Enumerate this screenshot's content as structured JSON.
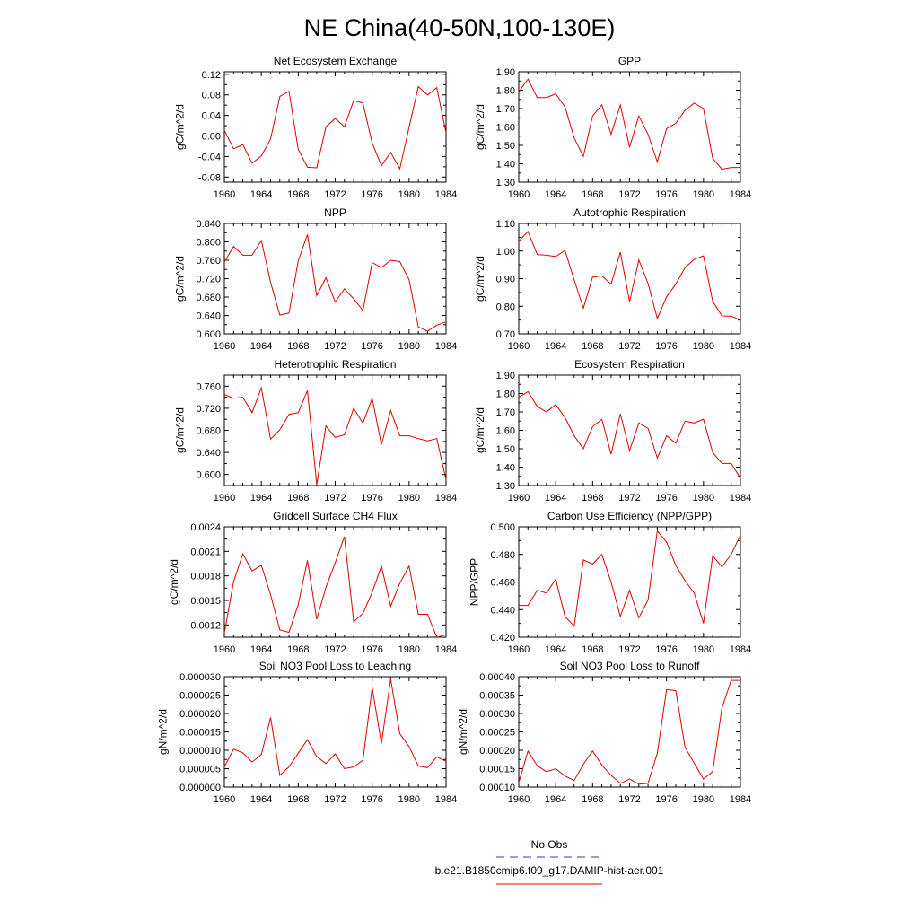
{
  "page": {
    "title": "NE China(40-50N,100-130E)"
  },
  "legend": {
    "entries": [
      {
        "label": "No Obs",
        "color": "#3333cc",
        "style": "dashed"
      },
      {
        "label": "b.e21.B1850cmip6.f09_g17.DAMIP-hist-aer.001",
        "color": "#e00000",
        "style": "solid"
      }
    ]
  },
  "chart_data": [
    {
      "type": "line",
      "title": "Net Ecosystem Exchange",
      "ylabel": "gC/m^2/d",
      "xlim": [
        1960,
        1984
      ],
      "ylim": [
        -0.09,
        0.125
      ],
      "xticks": [
        1960,
        1964,
        1968,
        1972,
        1976,
        1980,
        1984
      ],
      "yticks": [
        -0.08,
        -0.04,
        0.0,
        0.04,
        0.08,
        0.12
      ],
      "ytick_labels": [
        "-0.08",
        "-0.04",
        "0.00",
        "0.04",
        "0.08",
        "0.12"
      ],
      "series": [
        {
          "color": "#e00000",
          "x": [
            1960,
            1961,
            1962,
            1963,
            1964,
            1965,
            1966,
            1967,
            1968,
            1969,
            1970,
            1971,
            1972,
            1973,
            1974,
            1975,
            1976,
            1977,
            1978,
            1979,
            1980,
            1981,
            1982,
            1983,
            1984
          ],
          "y": [
            0.011,
            -0.025,
            -0.017,
            -0.053,
            -0.039,
            -0.006,
            0.077,
            0.087,
            -0.026,
            -0.061,
            -0.062,
            0.018,
            0.034,
            0.018,
            0.069,
            0.064,
            -0.014,
            -0.058,
            -0.032,
            -0.064,
            0.017,
            0.096,
            0.08,
            0.094,
            0.006
          ]
        }
      ]
    },
    {
      "type": "line",
      "title": "GPP",
      "ylabel": "gC/m^2/d",
      "xlim": [
        1960,
        1984
      ],
      "ylim": [
        1.3,
        1.9
      ],
      "xticks": [
        1960,
        1964,
        1968,
        1972,
        1976,
        1980,
        1984
      ],
      "yticks": [
        1.3,
        1.4,
        1.5,
        1.6,
        1.7,
        1.8,
        1.9
      ],
      "ytick_labels": [
        "1.30",
        "1.40",
        "1.50",
        "1.60",
        "1.70",
        "1.80",
        "1.90"
      ],
      "series": [
        {
          "color": "#e00000",
          "x": [
            1960,
            1961,
            1962,
            1963,
            1964,
            1965,
            1966,
            1967,
            1968,
            1969,
            1970,
            1971,
            1972,
            1973,
            1974,
            1975,
            1976,
            1977,
            1978,
            1979,
            1980,
            1981,
            1982,
            1983,
            1984
          ],
          "y": [
            1.79,
            1.86,
            1.76,
            1.76,
            1.78,
            1.71,
            1.54,
            1.44,
            1.66,
            1.72,
            1.56,
            1.72,
            1.49,
            1.66,
            1.56,
            1.41,
            1.59,
            1.62,
            1.69,
            1.73,
            1.7,
            1.43,
            1.37,
            1.38,
            1.38
          ]
        }
      ]
    },
    {
      "type": "line",
      "title": "NPP",
      "ylabel": "gC/m^2/d",
      "xlim": [
        1960,
        1984
      ],
      "ylim": [
        0.6,
        0.84
      ],
      "xticks": [
        1960,
        1964,
        1968,
        1972,
        1976,
        1980,
        1984
      ],
      "yticks": [
        0.6,
        0.64,
        0.68,
        0.72,
        0.76,
        0.8,
        0.84
      ],
      "ytick_labels": [
        "0.600",
        "0.640",
        "0.680",
        "0.720",
        "0.760",
        "0.800",
        "0.840"
      ],
      "series": [
        {
          "color": "#e00000",
          "x": [
            1960,
            1961,
            1962,
            1963,
            1964,
            1965,
            1966,
            1967,
            1968,
            1969,
            1970,
            1971,
            1972,
            1973,
            1974,
            1975,
            1976,
            1977,
            1978,
            1979,
            1980,
            1981,
            1982,
            1983,
            1984
          ],
          "y": [
            0.756,
            0.79,
            0.771,
            0.771,
            0.803,
            0.712,
            0.641,
            0.645,
            0.759,
            0.816,
            0.683,
            0.722,
            0.669,
            0.698,
            0.676,
            0.651,
            0.755,
            0.744,
            0.76,
            0.757,
            0.718,
            0.615,
            0.606,
            0.619,
            0.626
          ]
        }
      ]
    },
    {
      "type": "line",
      "title": "Autotrophic Respiration",
      "ylabel": "gC/m^2/d",
      "xlim": [
        1960,
        1984
      ],
      "ylim": [
        0.7,
        1.1
      ],
      "xticks": [
        1960,
        1964,
        1968,
        1972,
        1976,
        1980,
        1984
      ],
      "yticks": [
        0.7,
        0.8,
        0.9,
        1.0,
        1.1
      ],
      "ytick_labels": [
        "0.70",
        "0.80",
        "0.90",
        "1.00",
        "1.10"
      ],
      "series": [
        {
          "color": "#e00000",
          "x": [
            1960,
            1961,
            1962,
            1963,
            1964,
            1965,
            1966,
            1967,
            1968,
            1969,
            1970,
            1971,
            1972,
            1973,
            1974,
            1975,
            1976,
            1977,
            1978,
            1979,
            1980,
            1981,
            1982,
            1983,
            1984
          ],
          "y": [
            1.035,
            1.071,
            0.987,
            0.985,
            0.98,
            1.002,
            0.895,
            0.793,
            0.906,
            0.91,
            0.88,
            0.996,
            0.816,
            0.968,
            0.882,
            0.756,
            0.834,
            0.88,
            0.94,
            0.97,
            0.983,
            0.818,
            0.765,
            0.764,
            0.75
          ]
        }
      ]
    },
    {
      "type": "line",
      "title": "Heterotrophic Respiration",
      "ylabel": "gC/m^2/d",
      "xlim": [
        1960,
        1984
      ],
      "ylim": [
        0.58,
        0.78
      ],
      "xticks": [
        1960,
        1964,
        1968,
        1972,
        1976,
        1980,
        1984
      ],
      "yticks": [
        0.6,
        0.64,
        0.68,
        0.72,
        0.76
      ],
      "ytick_labels": [
        "0.600",
        "0.640",
        "0.680",
        "0.720",
        "0.760"
      ],
      "series": [
        {
          "color": "#e00000",
          "x": [
            1960,
            1961,
            1962,
            1963,
            1964,
            1965,
            1966,
            1967,
            1968,
            1969,
            1970,
            1971,
            1972,
            1973,
            1974,
            1975,
            1976,
            1977,
            1978,
            1979,
            1980,
            1981,
            1982,
            1983,
            1984
          ],
          "y": [
            0.745,
            0.738,
            0.74,
            0.712,
            0.757,
            0.664,
            0.681,
            0.709,
            0.712,
            0.752,
            0.582,
            0.688,
            0.667,
            0.672,
            0.72,
            0.693,
            0.738,
            0.654,
            0.716,
            0.67,
            0.67,
            0.665,
            0.661,
            0.665,
            0.59
          ]
        }
      ]
    },
    {
      "type": "line",
      "title": "Ecosystem Respiration",
      "ylabel": "gC/m^2/d",
      "xlim": [
        1960,
        1984
      ],
      "ylim": [
        1.3,
        1.9
      ],
      "xticks": [
        1960,
        1964,
        1968,
        1972,
        1976,
        1980,
        1984
      ],
      "yticks": [
        1.3,
        1.4,
        1.5,
        1.6,
        1.7,
        1.8,
        1.9
      ],
      "ytick_labels": [
        "1.30",
        "1.40",
        "1.50",
        "1.60",
        "1.70",
        "1.80",
        "1.90"
      ],
      "series": [
        {
          "color": "#e00000",
          "x": [
            1960,
            1961,
            1962,
            1963,
            1964,
            1965,
            1966,
            1967,
            1968,
            1969,
            1970,
            1971,
            1972,
            1973,
            1974,
            1975,
            1976,
            1977,
            1978,
            1979,
            1980,
            1981,
            1982,
            1983,
            1984
          ],
          "y": [
            1.78,
            1.81,
            1.73,
            1.7,
            1.74,
            1.67,
            1.57,
            1.5,
            1.62,
            1.66,
            1.47,
            1.69,
            1.49,
            1.64,
            1.61,
            1.45,
            1.57,
            1.53,
            1.65,
            1.64,
            1.66,
            1.48,
            1.42,
            1.42,
            1.34
          ]
        }
      ]
    },
    {
      "type": "line",
      "title": "Gridcell Surface CH4 Flux",
      "ylabel": "gC/m^2/d",
      "xlim": [
        1960,
        1984
      ],
      "ylim": [
        0.00105,
        0.0024
      ],
      "xticks": [
        1960,
        1964,
        1968,
        1972,
        1976,
        1980,
        1984
      ],
      "yticks": [
        0.0012,
        0.0015,
        0.0018,
        0.0021,
        0.0024
      ],
      "ytick_labels": [
        "0.0012",
        "0.0015",
        "0.0018",
        "0.0021",
        "0.0024"
      ],
      "series": [
        {
          "color": "#e00000",
          "x": [
            1960,
            1961,
            1962,
            1963,
            1964,
            1965,
            1966,
            1967,
            1968,
            1969,
            1970,
            1971,
            1972,
            1973,
            1974,
            1975,
            1976,
            1977,
            1978,
            1979,
            1980,
            1981,
            1982,
            1983,
            1984
          ],
          "y": [
            0.0011,
            0.00173,
            0.00207,
            0.00186,
            0.00193,
            0.00157,
            0.00114,
            0.00111,
            0.00145,
            0.00199,
            0.00127,
            0.00166,
            0.00196,
            0.00228,
            0.00124,
            0.00134,
            0.0016,
            0.00192,
            0.00143,
            0.00171,
            0.00192,
            0.00133,
            0.00133,
            0.00105,
            0.00108
          ]
        }
      ]
    },
    {
      "type": "line",
      "title": "Carbon Use Efficiency (NPP/GPP)",
      "ylabel": "NPP/GPP",
      "xlim": [
        1960,
        1984
      ],
      "ylim": [
        0.42,
        0.5
      ],
      "xticks": [
        1960,
        1964,
        1968,
        1972,
        1976,
        1980,
        1984
      ],
      "yticks": [
        0.42,
        0.44,
        0.46,
        0.48,
        0.5
      ],
      "ytick_labels": [
        "0.420",
        "0.440",
        "0.460",
        "0.480",
        "0.500"
      ],
      "series": [
        {
          "color": "#e00000",
          "x": [
            1960,
            1961,
            1962,
            1963,
            1964,
            1965,
            1966,
            1967,
            1968,
            1969,
            1970,
            1971,
            1972,
            1973,
            1974,
            1975,
            1976,
            1977,
            1978,
            1979,
            1980,
            1981,
            1982,
            1983,
            1984
          ],
          "y": [
            0.443,
            0.443,
            0.454,
            0.452,
            0.462,
            0.435,
            0.428,
            0.476,
            0.473,
            0.48,
            0.46,
            0.435,
            0.454,
            0.434,
            0.447,
            0.497,
            0.489,
            0.472,
            0.461,
            0.452,
            0.43,
            0.479,
            0.471,
            0.48,
            0.494
          ]
        }
      ]
    },
    {
      "type": "line",
      "title": "Soil NO3 Pool Loss to Leaching",
      "ylabel": "gN/m^2/d",
      "xlim": [
        1960,
        1984
      ],
      "ylim": [
        0.0,
        3e-05
      ],
      "xticks": [
        1960,
        1964,
        1968,
        1972,
        1976,
        1980,
        1984
      ],
      "yticks": [
        0.0,
        5e-06,
        1e-05,
        1.5e-05,
        2e-05,
        2.5e-05,
        3e-05
      ],
      "ytick_labels": [
        "0.000000",
        "0.000005",
        "0.000010",
        "0.000015",
        "0.000020",
        "0.000025",
        "0.000030"
      ],
      "series": [
        {
          "color": "#e00000",
          "x": [
            1960,
            1961,
            1962,
            1963,
            1964,
            1965,
            1966,
            1967,
            1968,
            1969,
            1970,
            1971,
            1972,
            1973,
            1974,
            1975,
            1976,
            1977,
            1978,
            1979,
            1980,
            1981,
            1982,
            1983,
            1984
          ],
          "y": [
            5.5e-06,
            1.03e-05,
            9.3e-06,
            6.8e-06,
            8.8e-06,
            1.89e-05,
            3.2e-06,
            5.5e-06,
            9.2e-06,
            1.29e-05,
            8.3e-06,
            6.4e-06,
            9e-06,
            5e-06,
            5.5e-06,
            7.3e-06,
            2.71e-05,
            1.18e-05,
            2.94e-05,
            1.45e-05,
            1.1e-05,
            5.7e-06,
            5.3e-06,
            8.2e-06,
            7e-06
          ]
        }
      ]
    },
    {
      "type": "line",
      "title": "Soil NO3 Pool Loss to Runoff",
      "ylabel": "gN/m^2/d",
      "xlim": [
        1960,
        1984
      ],
      "ylim": [
        0.0001,
        0.0004
      ],
      "xticks": [
        1960,
        1964,
        1968,
        1972,
        1976,
        1980,
        1984
      ],
      "yticks": [
        0.0001,
        0.00015,
        0.0002,
        0.00025,
        0.0003,
        0.00035,
        0.0004
      ],
      "ytick_labels": [
        "0.00010",
        "0.00015",
        "0.00020",
        "0.00025",
        "0.00030",
        "0.00035",
        "0.00040"
      ],
      "series": [
        {
          "color": "#e00000",
          "x": [
            1960,
            1961,
            1962,
            1963,
            1964,
            1965,
            1966,
            1967,
            1968,
            1969,
            1970,
            1971,
            1972,
            1973,
            1974,
            1975,
            1976,
            1977,
            1978,
            1979,
            1980,
            1981,
            1982,
            1983,
            1984
          ],
          "y": [
            0.000112,
            0.000198,
            0.000158,
            0.000142,
            0.00015,
            0.00013,
            0.000118,
            0.000162,
            0.000198,
            0.00016,
            0.000132,
            0.00011,
            0.000122,
            0.000108,
            0.00011,
            0.000192,
            0.000365,
            0.000362,
            0.000208,
            0.000165,
            0.000122,
            0.000142,
            0.000315,
            0.00039,
            0.00039
          ]
        }
      ]
    }
  ]
}
